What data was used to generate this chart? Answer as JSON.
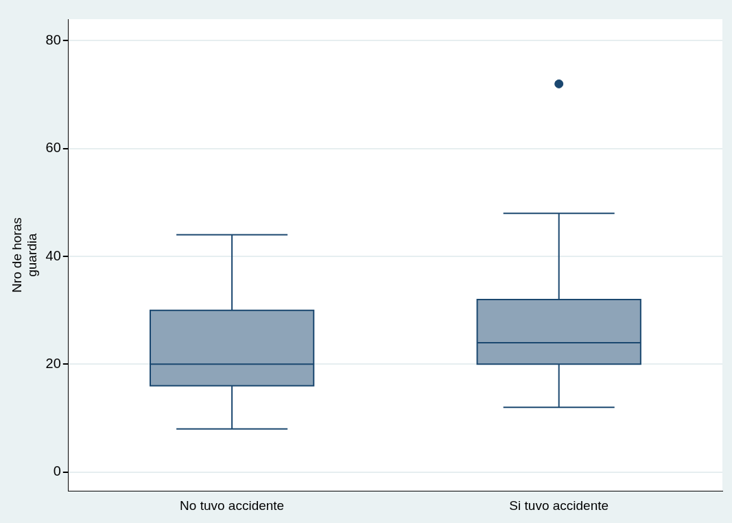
{
  "chart_data": {
    "type": "box",
    "ylabel": "Nro de horas\nguardia",
    "categories": [
      "No tuvo accidente",
      "Si tuvo accidente"
    ],
    "boxes": [
      {
        "low": 8,
        "q1": 16,
        "median": 20,
        "q3": 30,
        "high": 44
      },
      {
        "low": 12,
        "q1": 20,
        "median": 24,
        "q3": 32,
        "high": 48,
        "outliers": [
          72
        ]
      }
    ],
    "color": "#8ea4b8",
    "ylim": [
      -3.5,
      84
    ],
    "yticks": [
      0,
      20,
      40,
      60,
      80
    ],
    "grid": "y",
    "legend": false
  }
}
